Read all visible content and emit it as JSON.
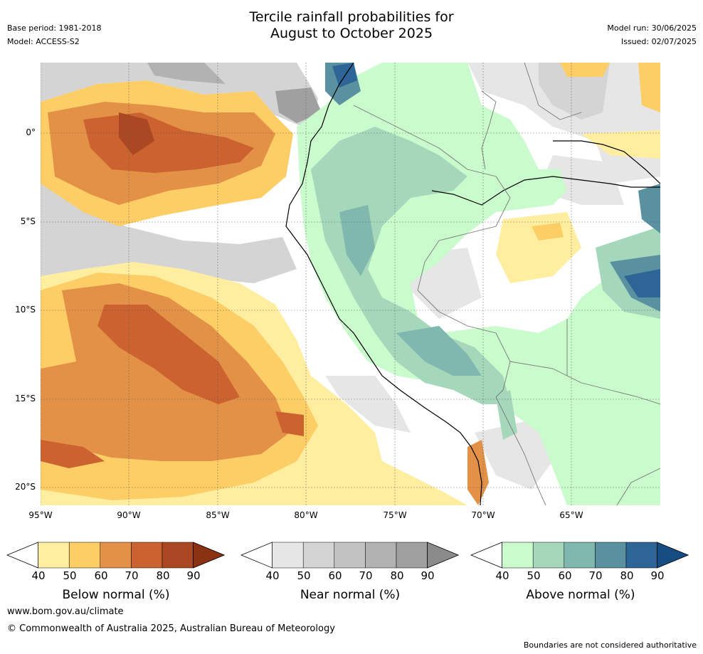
{
  "header": {
    "title_line1": "Tercile rainfall probabilities for",
    "title_line2": "August to October 2025",
    "base_period": "Base period: 1981-2018",
    "model": "Model: ACCESS-S2",
    "model_run": "Model run: 30/06/2025",
    "issued": "Issued: 02/07/2025"
  },
  "axes": {
    "lat_labels": [
      "0°",
      "5°S",
      "10°S",
      "15°S",
      "20°S"
    ],
    "lon_labels": [
      "95°W",
      "90°W",
      "85°W",
      "80°W",
      "75°W",
      "70°W",
      "65°W"
    ]
  },
  "legend": {
    "ticks": [
      "40",
      "50",
      "60",
      "70",
      "80",
      "90"
    ],
    "below": {
      "title": "Below normal (%)",
      "colors": [
        "#ffffff",
        "#ffeea0",
        "#fdcd66",
        "#e49148",
        "#cb6230",
        "#ab4824",
        "#8a3212"
      ]
    },
    "near": {
      "title": "Near normal (%)",
      "colors": [
        "#ffffff",
        "#e6e6e6",
        "#d4d4d4",
        "#c2c2c2",
        "#b2b2b2",
        "#a0a0a0",
        "#8a8a8a"
      ]
    },
    "above": {
      "title": "Above normal (%)",
      "colors": [
        "#ffffff",
        "#c9fbcc",
        "#a5d8bb",
        "#80b7ae",
        "#5a91a0",
        "#2e6597",
        "#154d82"
      ]
    }
  },
  "footer": {
    "url": "www.bom.gov.au/climate",
    "copyright": "© Commonwealth of Australia 2025, Australian Bureau of Meteorology",
    "disclaimer": "Boundaries are not considered authoritative"
  }
}
